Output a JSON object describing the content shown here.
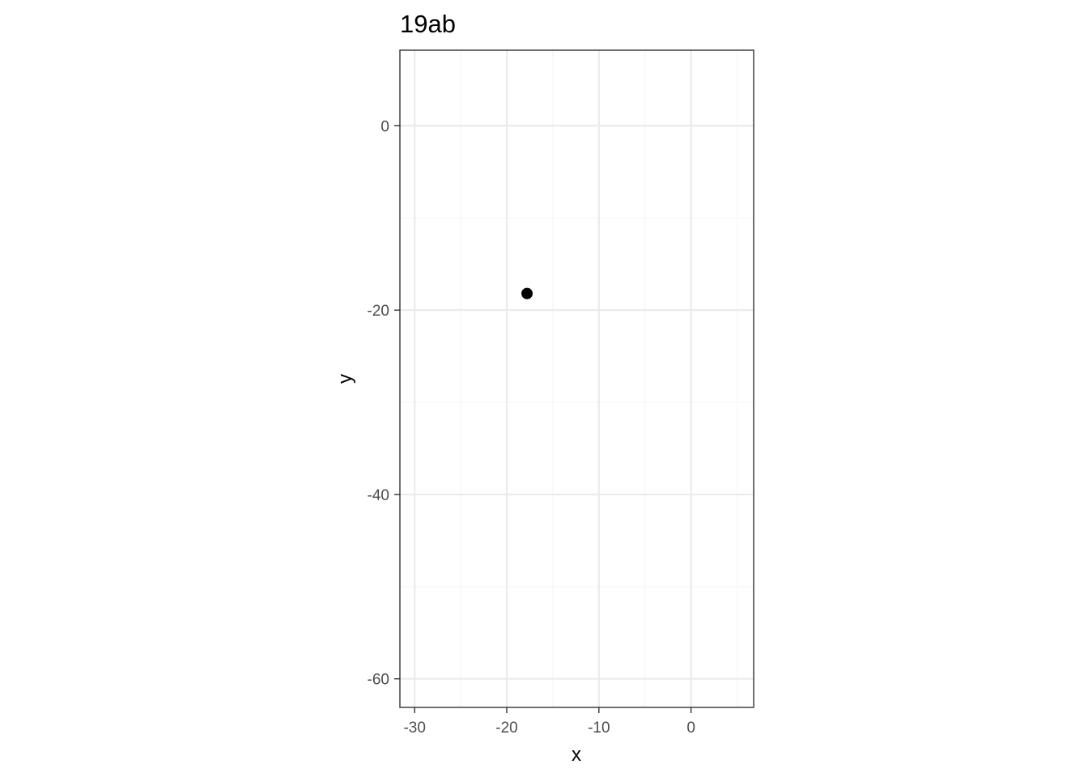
{
  "chart_data": {
    "type": "scatter",
    "title": "19ab",
    "xlabel": "x",
    "ylabel": "y",
    "xlim": [
      -31.6,
      6.8
    ],
    "ylim": [
      -63.1,
      8.2
    ],
    "x_ticks": [
      -30,
      -20,
      -10,
      0
    ],
    "x_tick_labels": [
      "-30",
      "-20",
      "-10",
      "0"
    ],
    "x_minor_ticks": [
      -25,
      -15,
      -5,
      5
    ],
    "y_ticks": [
      0,
      -20,
      -40,
      -60
    ],
    "y_tick_labels": [
      "0",
      "-20",
      "-40",
      "-60"
    ],
    "y_minor_ticks": [
      -10,
      -30,
      -50
    ],
    "points": [
      {
        "x": -17.8,
        "y": -18.2
      }
    ],
    "grid": true,
    "legend": "none",
    "colors": {
      "point": "#000000",
      "panel_border": "#333333",
      "grid_major": "#ebebeb",
      "grid_minor": "#f5f5f5"
    }
  }
}
